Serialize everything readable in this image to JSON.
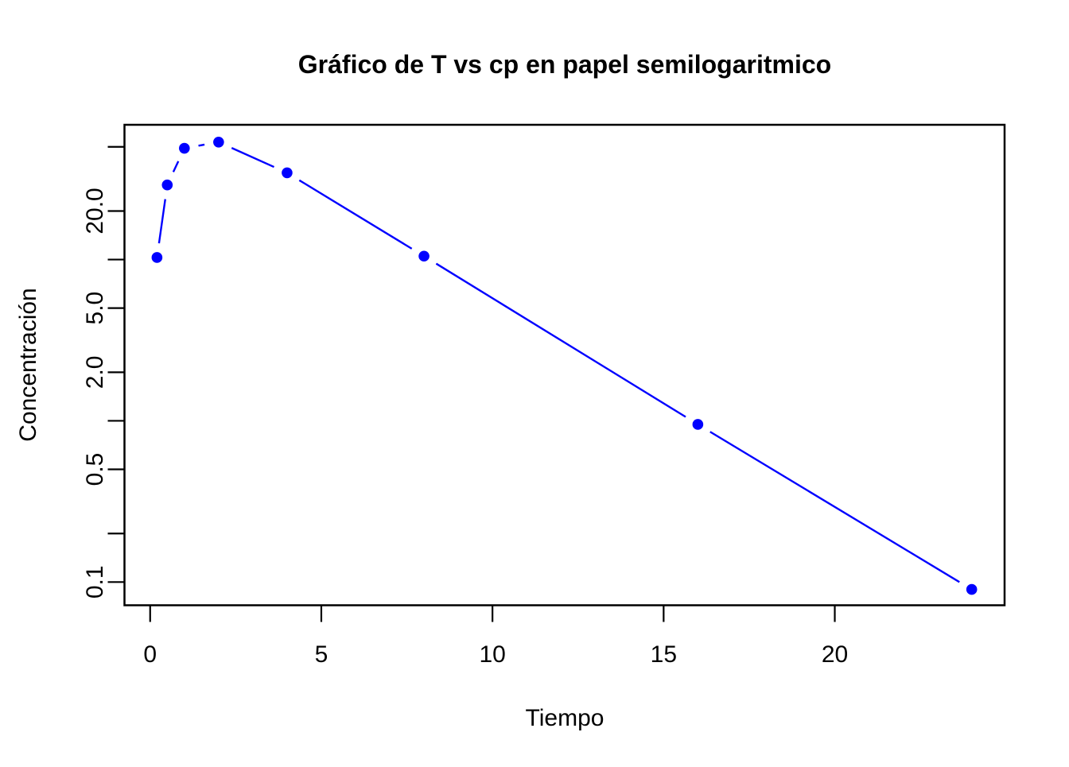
{
  "figure": {
    "background": "#FFFFFF"
  },
  "chart_data": {
    "type": "line",
    "title": "Gráfico de T vs cp en papel semilogaritmico",
    "xlabel": "Tiempo",
    "ylabel": "Concentración",
    "series": [
      {
        "name": "cp",
        "x": [
          0.2,
          0.5,
          1,
          2,
          4,
          8,
          16,
          24
        ],
        "y": [
          10.3,
          29,
          49,
          53.5,
          34.5,
          10.5,
          0.95,
          0.09
        ]
      }
    ],
    "y_scale": "log10",
    "xlim": [
      -0.75,
      24.96
    ],
    "ylim": [
      0.0718,
      68.5
    ],
    "x_ticks": [
      {
        "value": 0,
        "label": "0"
      },
      {
        "value": 5,
        "label": "5"
      },
      {
        "value": 10,
        "label": "10"
      },
      {
        "value": 15,
        "label": "15"
      },
      {
        "value": 20,
        "label": "20"
      }
    ],
    "y_ticks": [
      {
        "value": 50,
        "label": ""
      },
      {
        "value": 20,
        "label": "20.0"
      },
      {
        "value": 10,
        "label": ""
      },
      {
        "value": 5,
        "label": "5.0"
      },
      {
        "value": 2,
        "label": "2.0"
      },
      {
        "value": 1,
        "label": ""
      },
      {
        "value": 0.5,
        "label": "0.5"
      },
      {
        "value": 0.2,
        "label": ""
      },
      {
        "value": 0.1,
        "label": "0.1"
      }
    ],
    "grid": false,
    "legend": null,
    "marker": "filled-circle",
    "line_style": "solid-with-point-gaps",
    "line_color": "#0000FF",
    "point_color": "#0000FF",
    "axis_color": "#000000",
    "text_color": "#000000"
  }
}
